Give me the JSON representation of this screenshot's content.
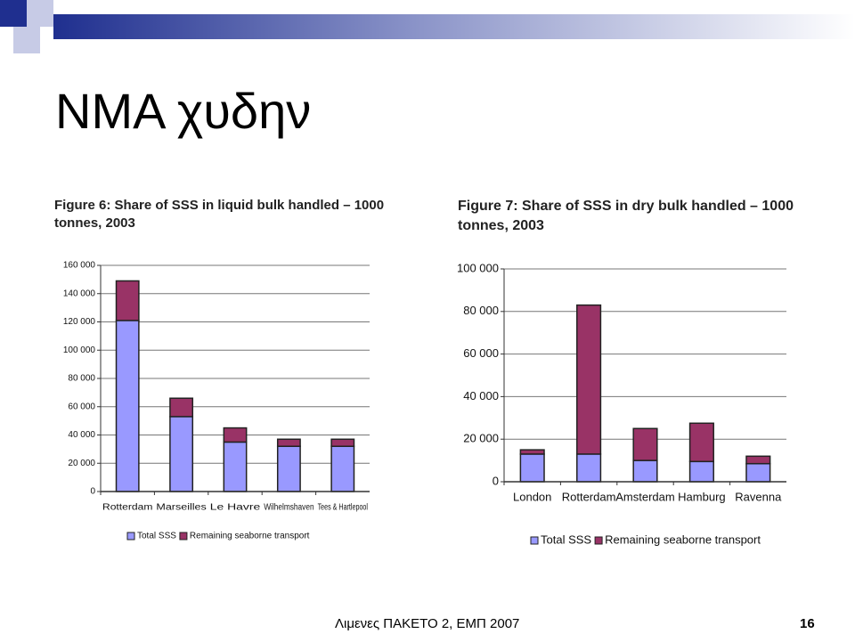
{
  "slide": {
    "title": "NMA χυδην",
    "footer": "Λιμενες ΠΑΚΕΤΟ 2, ΕΜΠ 2007",
    "page": "16"
  },
  "chart_data": [
    {
      "type": "stacked-bar",
      "title": "Figure 6: Share of SSS in liquid bulk handled – 1000 tonnes, 2003",
      "categories": [
        "Rotterdam",
        "Marseilles",
        "Le Havre",
        "Wilhelmshaven",
        "Tees & Hartlepool"
      ],
      "series": [
        {
          "name": "Total SSS",
          "color": "#9999ff",
          "values": [
            121000,
            53000,
            35000,
            32000,
            32000
          ]
        },
        {
          "name": "Remaining seaborne transport",
          "color": "#993366",
          "values": [
            28000,
            13000,
            10000,
            5000,
            5000
          ]
        }
      ],
      "ylim": [
        0,
        160000
      ],
      "yticks": [
        0,
        {
          "value": 20000,
          "label": "20 000"
        },
        {
          "value": 40000,
          "label": "40 000"
        },
        {
          "value": 60000,
          "label": "60 000"
        },
        {
          "value": 80000,
          "label": "80 000"
        },
        {
          "value": 100000,
          "label": "100 000"
        },
        {
          "value": 120000,
          "label": "120 000"
        },
        {
          "value": 140000,
          "label": "140 000"
        },
        {
          "value": 160000,
          "label": "160 000"
        }
      ],
      "grid": true
    },
    {
      "type": "stacked-bar",
      "title": "Figure 7: Share of SSS in dry bulk handled – 1000 tonnes, 2003",
      "categories": [
        "London",
        "Rotterdam",
        "Amsterdam",
        "Hamburg",
        "Ravenna"
      ],
      "series": [
        {
          "name": "Total SSS",
          "color": "#9999ff",
          "values": [
            13000,
            13000,
            10000,
            9500,
            8500
          ]
        },
        {
          "name": "Remaining seaborne transport",
          "color": "#993366",
          "values": [
            2000,
            70000,
            15000,
            18000,
            3500
          ]
        }
      ],
      "ylim": [
        0,
        100000
      ],
      "yticks": [
        0,
        {
          "value": 20000,
          "label": "20 000"
        },
        {
          "value": 40000,
          "label": "40 000"
        },
        {
          "value": 60000,
          "label": "60 000"
        },
        {
          "value": 80000,
          "label": "80 000"
        },
        {
          "value": 100000,
          "label": "100 000"
        }
      ],
      "grid": true
    }
  ]
}
